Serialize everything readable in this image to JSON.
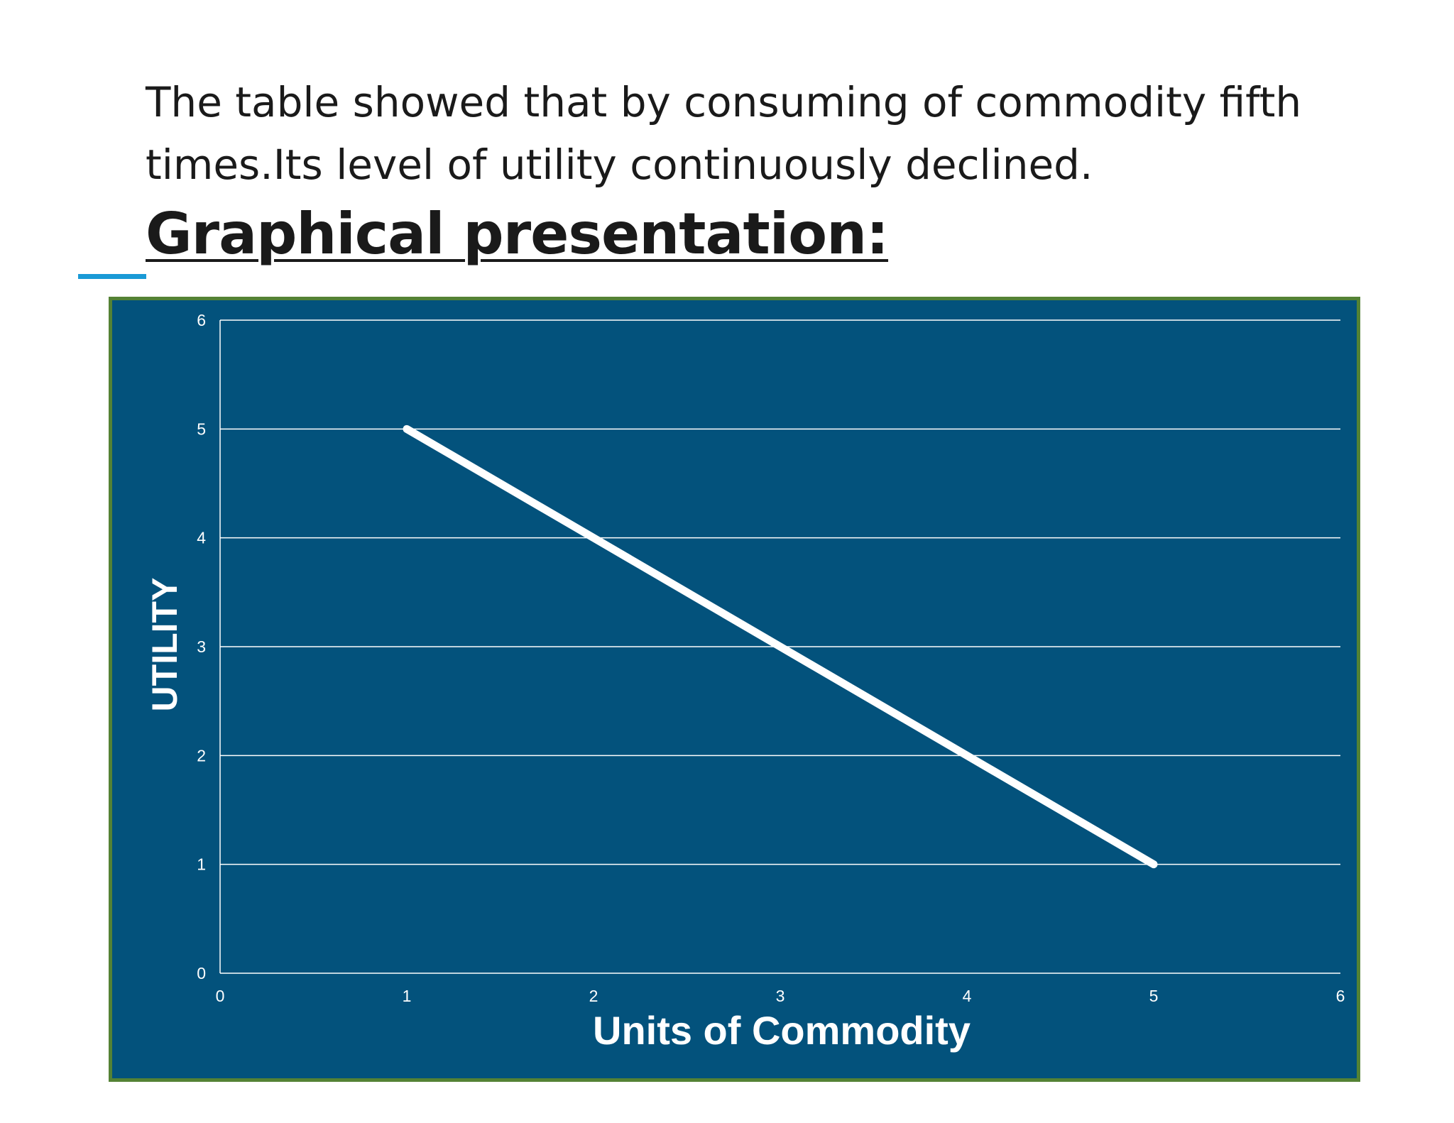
{
  "paragraph": {
    "line1": "The table showed that by consuming of commodity fifth",
    "line2": "times.Its level of utility continuously declined."
  },
  "heading": "Graphical presentation:",
  "colors": {
    "chart_background": "#03527c",
    "chart_border": "#548235",
    "accent": "#1a9ad6",
    "line": "#ffffff",
    "gridline": "#ffffff"
  },
  "chart_data": {
    "type": "line",
    "title": "",
    "xlabel": "Units of Commodity",
    "ylabel": "UTILITY",
    "xlim": [
      0,
      6
    ],
    "ylim": [
      0,
      6
    ],
    "xticks": [
      "0",
      "1",
      "2",
      "3",
      "4",
      "5",
      "6"
    ],
    "yticks": [
      "0",
      "1",
      "2",
      "3",
      "4",
      "5",
      "6"
    ],
    "grid": "horizontal",
    "legend": "none",
    "series": [
      {
        "x": [
          1,
          2,
          3,
          4,
          5
        ],
        "y": [
          5,
          4,
          3,
          2,
          1
        ]
      }
    ]
  }
}
